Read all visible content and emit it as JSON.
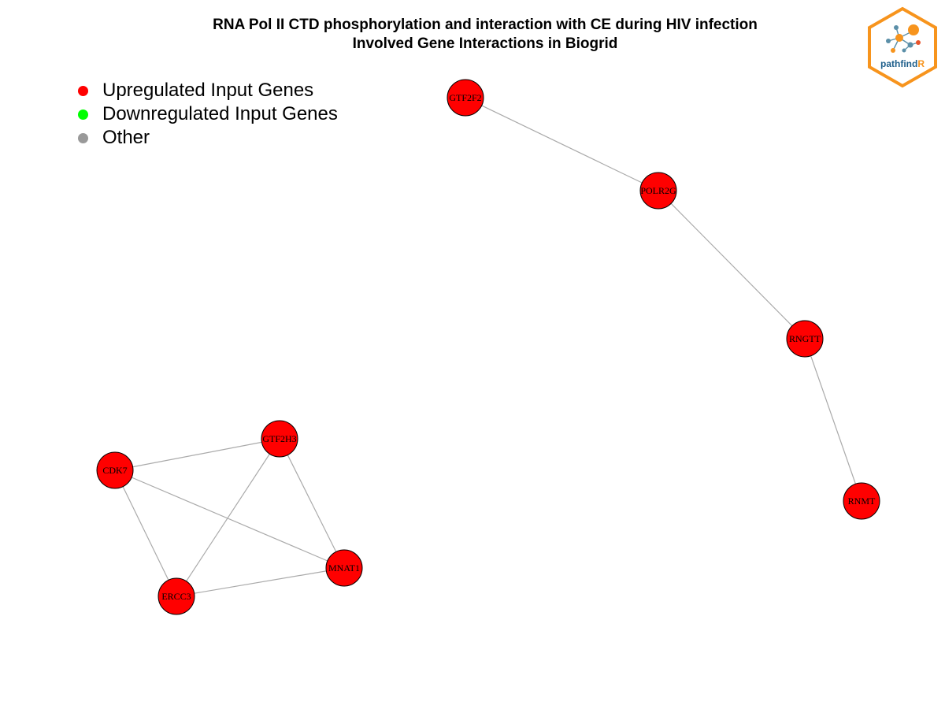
{
  "title": {
    "line1": "RNA Pol II CTD phosphorylation and interaction with CE during HIV infection",
    "line2": "Involved Gene Interactions in Biogrid"
  },
  "legend": {
    "items": [
      {
        "label": "Upregulated Input Genes",
        "color": "#ff0000"
      },
      {
        "label": "Downregulated Input Genes",
        "color": "#00ff00"
      },
      {
        "label": "Other",
        "color": "#999999"
      }
    ]
  },
  "logo": {
    "text_main": "pathfind",
    "text_accent": "R",
    "border_color": "#f7941d",
    "accent_color": "#f7941d",
    "text_color": "#1f5f8b"
  },
  "network": {
    "node_color": "#ff0000",
    "edge_color": "#aaaaaa",
    "nodes": [
      {
        "id": "GTF2F2",
        "label": "GTF2F2"
      },
      {
        "id": "POLR2G",
        "label": "POLR2G"
      },
      {
        "id": "RNGTT",
        "label": "RNGTT"
      },
      {
        "id": "RNMT",
        "label": "RNMT"
      },
      {
        "id": "GTF2H3",
        "label": "GTF2H3"
      },
      {
        "id": "CDK7",
        "label": "CDK7"
      },
      {
        "id": "MNAT1",
        "label": "MNAT1"
      },
      {
        "id": "ERCC3",
        "label": "ERCC3"
      }
    ],
    "edges": [
      {
        "source": "GTF2F2",
        "target": "POLR2G"
      },
      {
        "source": "POLR2G",
        "target": "RNGTT"
      },
      {
        "source": "RNGTT",
        "target": "RNMT"
      },
      {
        "source": "CDK7",
        "target": "GTF2H3"
      },
      {
        "source": "CDK7",
        "target": "MNAT1"
      },
      {
        "source": "CDK7",
        "target": "ERCC3"
      },
      {
        "source": "GTF2H3",
        "target": "MNAT1"
      },
      {
        "source": "GTF2H3",
        "target": "ERCC3"
      },
      {
        "source": "ERCC3",
        "target": "MNAT1"
      }
    ]
  }
}
